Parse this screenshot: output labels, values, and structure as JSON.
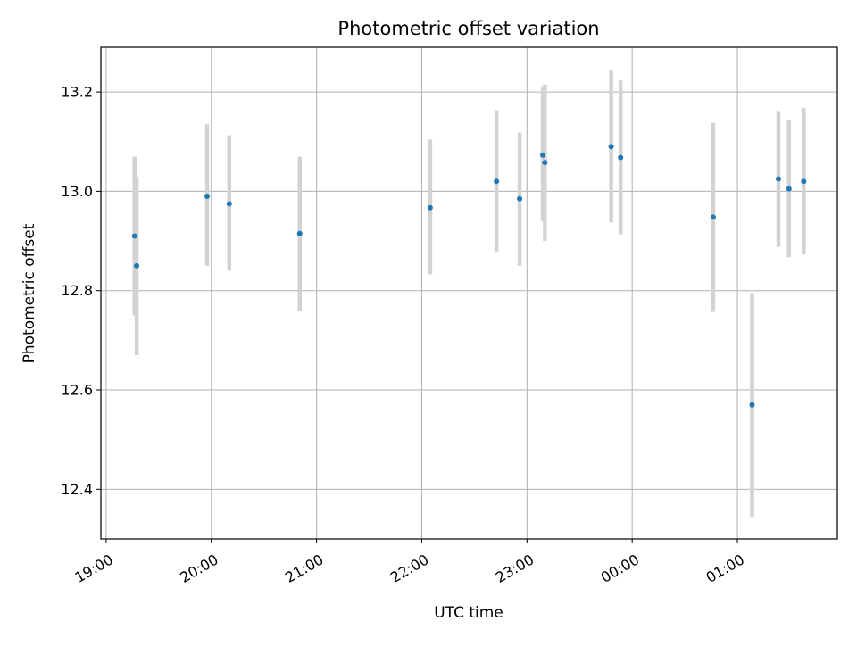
{
  "chart_data": {
    "type": "scatter",
    "title": "Photometric offset variation",
    "xlabel": "UTC time",
    "ylabel": "Photometric offset",
    "x_axis_kind": "time",
    "x_tick_labels": [
      "19:00",
      "20:00",
      "21:00",
      "22:00",
      "23:00",
      "00:00",
      "01:00"
    ],
    "x_tick_hours": [
      0,
      1,
      2,
      3,
      4,
      5,
      6
    ],
    "x_range_hours": [
      -0.05,
      6.95
    ],
    "y_tick_labels": [
      "12.4",
      "12.6",
      "12.8",
      "13.0",
      "13.2"
    ],
    "y_tick_values": [
      12.4,
      12.6,
      12.8,
      13.0,
      13.2
    ],
    "ylim": [
      12.3,
      13.29
    ],
    "grid": true,
    "marker_color": "#1f77b4",
    "errorbar_color": "#d3d3d3",
    "points": [
      {
        "time": "19:16",
        "hour": 0.27,
        "y": 12.91,
        "err_low": 12.75,
        "err_high": 13.07
      },
      {
        "time": "19:17",
        "hour": 0.29,
        "y": 12.85,
        "err_low": 12.67,
        "err_high": 13.03
      },
      {
        "time": "19:57",
        "hour": 0.96,
        "y": 12.99,
        "err_low": 12.85,
        "err_high": 13.135
      },
      {
        "time": "20:10",
        "hour": 1.17,
        "y": 12.975,
        "err_low": 12.84,
        "err_high": 13.113
      },
      {
        "time": "20:50",
        "hour": 1.84,
        "y": 12.915,
        "err_low": 12.76,
        "err_high": 13.07
      },
      {
        "time": "22:04",
        "hour": 3.08,
        "y": 12.967,
        "err_low": 12.833,
        "err_high": 13.104
      },
      {
        "time": "22:42",
        "hour": 3.71,
        "y": 13.02,
        "err_low": 12.878,
        "err_high": 13.163
      },
      {
        "time": "22:55",
        "hour": 3.93,
        "y": 12.985,
        "err_low": 12.85,
        "err_high": 13.118
      },
      {
        "time": "23:08",
        "hour": 4.15,
        "y": 13.073,
        "err_low": 12.94,
        "err_high": 13.21
      },
      {
        "time": "23:10",
        "hour": 4.17,
        "y": 13.058,
        "err_low": 12.9,
        "err_high": 13.215
      },
      {
        "time": "23:48",
        "hour": 4.8,
        "y": 13.09,
        "err_low": 12.937,
        "err_high": 13.245
      },
      {
        "time": "23:53",
        "hour": 4.89,
        "y": 13.068,
        "err_low": 12.913,
        "err_high": 13.223
      },
      {
        "time": "00:46",
        "hour": 5.77,
        "y": 12.948,
        "err_low": 12.757,
        "err_high": 13.138
      },
      {
        "time": "01:08",
        "hour": 6.14,
        "y": 12.57,
        "err_low": 12.345,
        "err_high": 12.795
      },
      {
        "time": "01:24",
        "hour": 6.39,
        "y": 13.025,
        "err_low": 12.888,
        "err_high": 13.162
      },
      {
        "time": "01:29",
        "hour": 6.49,
        "y": 13.005,
        "err_low": 12.867,
        "err_high": 13.143
      },
      {
        "time": "01:38",
        "hour": 6.63,
        "y": 13.02,
        "err_low": 12.873,
        "err_high": 13.168
      }
    ]
  }
}
